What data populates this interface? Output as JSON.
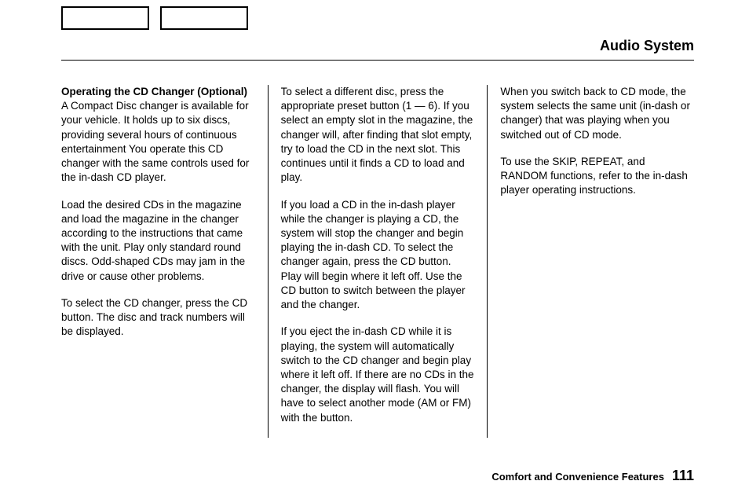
{
  "title": "Audio System",
  "columns": {
    "col1": {
      "heading": "Operating the CD Changer (Optional)",
      "p1": "A Compact Disc changer is available for your vehicle. It holds up to six discs, providing several hours of continuous entertainment You operate this CD changer with the same controls used for the in-dash CD player.",
      "p2": "Load the desired CDs in the magazine and load the magazine in the changer according to the instructions that came with the unit. Play only standard round discs. Odd-shaped CDs may jam in the drive or cause other problems.",
      "p3": "To select the CD changer, press the CD button. The disc and track numbers will be displayed."
    },
    "col2": {
      "p1": "To select a different disc, press the appropriate preset button (1 — 6). If you select an empty slot in the magazine, the changer will, after finding that slot empty, try to load the CD in the next slot. This continues until it finds a CD to load and play.",
      "p2": "If you load a CD in the in-dash player while the changer is playing a CD, the system will stop the changer and begin playing the in-dash CD. To select the changer again, press the CD button. Play will begin where it left off. Use the CD button to switch between the player and the changer.",
      "p3": "If you eject the in-dash CD while it is playing, the system will automatically switch to the CD changer and begin play where it left off. If there are no CDs in the changer, the display will flash. You will have to select another mode (AM or FM) with the button."
    },
    "col3": {
      "p1": "When you switch back to CD mode, the system selects the same unit (in-dash or changer) that was playing when you switched out of CD mode.",
      "p2": "To use the SKIP, REPEAT, and RANDOM functions, refer to the in-dash player operating instructions."
    }
  },
  "footer": {
    "label": "Comfort and Convenience Features",
    "page": "111"
  }
}
